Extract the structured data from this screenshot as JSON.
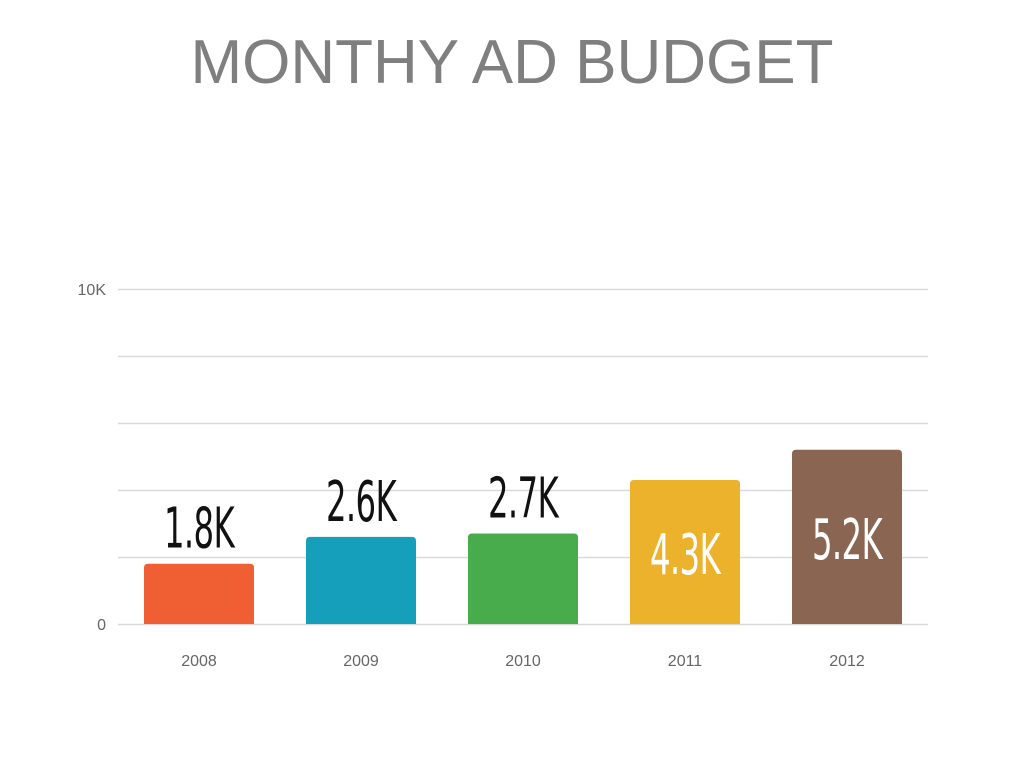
{
  "chart_data": {
    "type": "bar",
    "title": "MONTHY AD BUDGET",
    "xlabel": "",
    "ylabel": "",
    "categories": [
      "2008",
      "2009",
      "2010",
      "2011",
      "2012"
    ],
    "values": [
      1800,
      2600,
      2700,
      4300,
      5200
    ],
    "value_labels": [
      "1.8K",
      "2.6K",
      "2.7K",
      "4.3K",
      "5.2K"
    ],
    "colors": [
      "#f05f34",
      "#159fba",
      "#48ac4c",
      "#ecb22b",
      "#8a6551"
    ],
    "ylim": [
      0,
      10000
    ],
    "y_ticks": [
      {
        "value": 0,
        "label": "0"
      },
      {
        "value": 10000,
        "label": "10K"
      }
    ],
    "gridlines": [
      0,
      2000,
      4000,
      6000,
      8000,
      10000
    ],
    "grid": true,
    "legend": "none"
  }
}
